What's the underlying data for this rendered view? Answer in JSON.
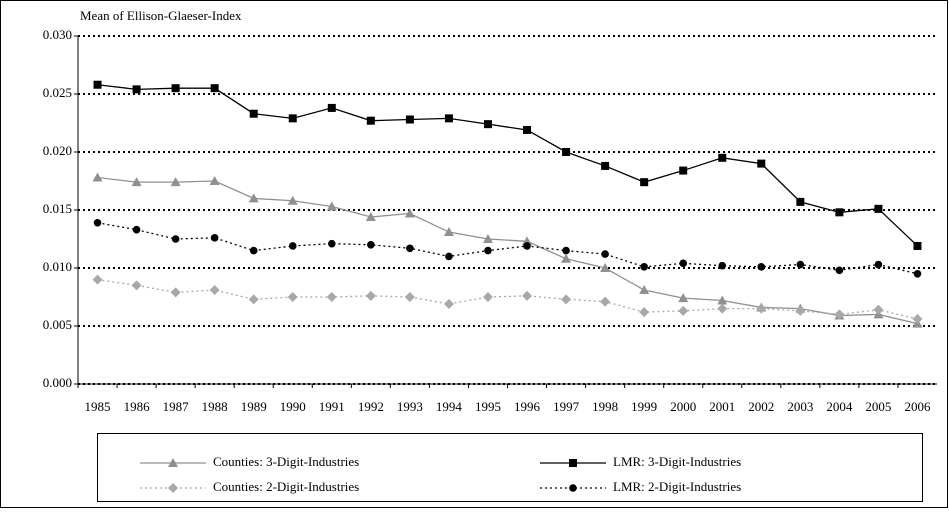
{
  "chart_data": {
    "type": "line",
    "y_label": "Mean of Ellison-Glaeser-Index",
    "categories": [
      "1985",
      "1986",
      "1987",
      "1988",
      "1989",
      "1990",
      "1991",
      "1992",
      "1993",
      "1994",
      "1995",
      "1996",
      "1997",
      "1998",
      "1999",
      "2000",
      "2001",
      "2002",
      "2003",
      "2004",
      "2005",
      "2006"
    ],
    "ylim": [
      0,
      0.03
    ],
    "yticks": [
      {
        "value": 0,
        "label": "0.000"
      },
      0.005,
      {
        "value": 0.01,
        "label": "0.010"
      },
      0.015,
      {
        "value": 0.02,
        "label": "0.020"
      },
      0.025,
      {
        "value": 0.03,
        "label": "0.030"
      }
    ],
    "grid": true,
    "series": [
      {
        "name": "Counties: 3-Digit-Industries",
        "color": "#909090",
        "dashed": false,
        "marker": "triangle",
        "values": [
          0.0178,
          0.0174,
          0.0174,
          0.0175,
          0.016,
          0.0158,
          0.0153,
          0.0144,
          0.0147,
          0.0131,
          0.0125,
          0.0123,
          0.0108,
          0.01,
          0.0081,
          0.0074,
          0.0072,
          0.0066,
          0.0065,
          0.0059,
          0.006,
          0.0052
        ]
      },
      {
        "name": "LMR: 3-Digit-Industries",
        "color": "#000000",
        "dashed": false,
        "marker": "square",
        "values": [
          0.0258,
          0.0254,
          0.0255,
          0.0255,
          0.0233,
          0.0229,
          0.0238,
          0.0227,
          0.0228,
          0.0229,
          0.0224,
          0.0219,
          0.02,
          0.0188,
          0.0174,
          0.0184,
          0.0195,
          0.019,
          0.0157,
          0.0148,
          0.0151,
          0.0119
        ]
      },
      {
        "name": "Counties: 2-Digit-Industries",
        "color": "#a8a8a8",
        "dashed": true,
        "marker": "diamond",
        "values": [
          0.009,
          0.0085,
          0.0079,
          0.0081,
          0.0073,
          0.0075,
          0.0075,
          0.0076,
          0.0075,
          0.0069,
          0.0075,
          0.0076,
          0.0073,
          0.0071,
          0.0062,
          0.0063,
          0.0065,
          0.0065,
          0.0063,
          0.006,
          0.0064,
          0.0056
        ]
      },
      {
        "name": "LMR: 2-Digit-Industries",
        "color": "#000000",
        "dashed": true,
        "marker": "circle",
        "values": [
          0.0139,
          0.0133,
          0.0125,
          0.0126,
          0.0115,
          0.0119,
          0.0121,
          0.012,
          0.0117,
          0.011,
          0.0115,
          0.0119,
          0.0115,
          0.0112,
          0.0101,
          0.0104,
          0.0102,
          0.0101,
          0.0103,
          0.0098,
          0.0103,
          0.0095
        ]
      }
    ]
  }
}
